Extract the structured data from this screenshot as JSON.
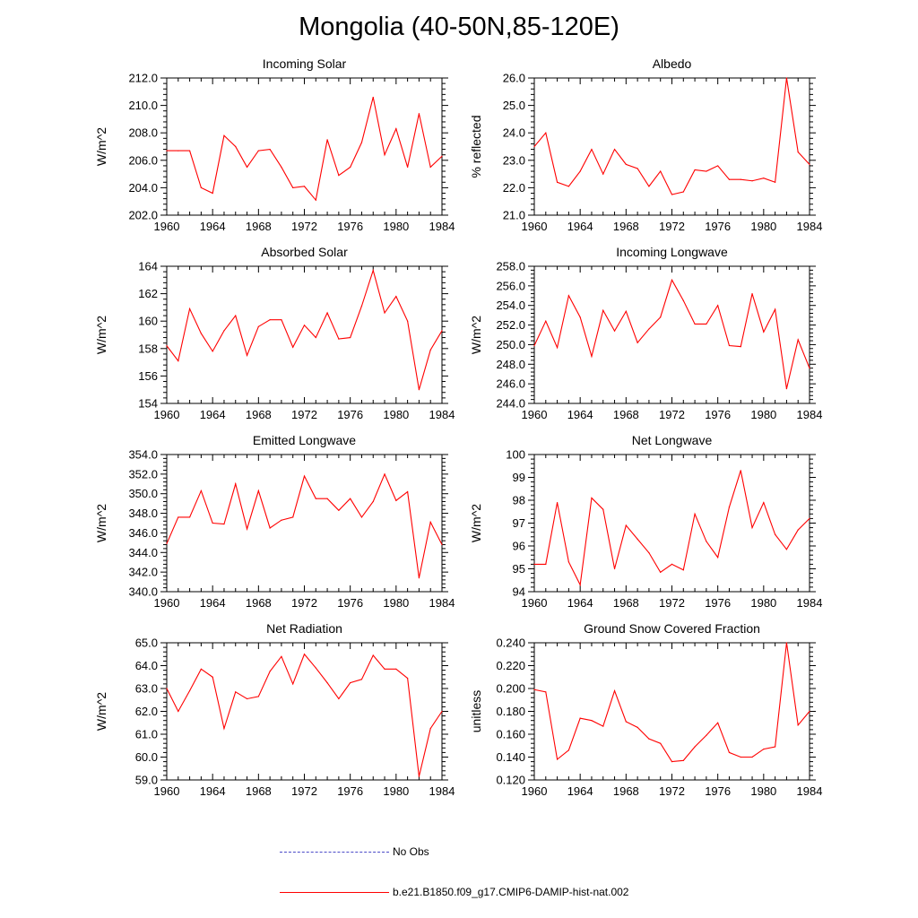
{
  "title": "Mongolia (40-50N,85-120E)",
  "legend": [
    {
      "label": "No Obs",
      "style": "dash",
      "color": "#4a4ac8"
    },
    {
      "label": "b.e21.B1850.f09_g17.CMIP6-DAMIP-hist-nat.002",
      "style": "solid",
      "color": "#ff0000"
    }
  ],
  "chart_data": [
    {
      "type": "line",
      "title": "Incoming Solar",
      "ylabel": "W/m^2",
      "xlim": [
        1960,
        1984
      ],
      "xticks": [
        "1960",
        "1964",
        "1968",
        "1972",
        "1976",
        "1980",
        "1984"
      ],
      "ylim": [
        202,
        212
      ],
      "yticks": [
        "202.0",
        "204.0",
        "206.0",
        "208.0",
        "210.0",
        "212.0"
      ],
      "color": "#ff0000",
      "x": [
        1960,
        1961,
        1962,
        1963,
        1964,
        1965,
        1966,
        1967,
        1968,
        1969,
        1970,
        1971,
        1972,
        1973,
        1974,
        1975,
        1976,
        1977,
        1978,
        1979,
        1980,
        1981,
        1982,
        1983,
        1984
      ],
      "values": [
        206.7,
        206.7,
        206.7,
        204.0,
        203.6,
        207.8,
        207.0,
        205.5,
        206.7,
        206.8,
        205.5,
        204.0,
        204.1,
        203.1,
        207.5,
        204.9,
        205.5,
        207.3,
        210.6,
        206.4,
        208.3,
        205.5,
        209.4,
        205.5,
        206.3
      ]
    },
    {
      "type": "line",
      "title": "Albedo",
      "ylabel": "% reflected",
      "xlim": [
        1960,
        1984
      ],
      "xticks": [
        "1960",
        "1964",
        "1968",
        "1972",
        "1976",
        "1980",
        "1984"
      ],
      "ylim": [
        21,
        26
      ],
      "yticks": [
        "21.0",
        "22.0",
        "23.0",
        "24.0",
        "25.0",
        "26.0"
      ],
      "color": "#ff0000",
      "x": [
        1960,
        1961,
        1962,
        1963,
        1964,
        1965,
        1966,
        1967,
        1968,
        1969,
        1970,
        1971,
        1972,
        1973,
        1974,
        1975,
        1976,
        1977,
        1978,
        1979,
        1980,
        1981,
        1982,
        1983,
        1984
      ],
      "values": [
        23.5,
        24.0,
        22.2,
        22.05,
        22.6,
        23.4,
        22.5,
        23.4,
        22.85,
        22.7,
        22.05,
        22.6,
        21.75,
        21.85,
        22.65,
        22.6,
        22.8,
        22.3,
        22.3,
        22.25,
        22.35,
        22.2,
        26.0,
        23.3,
        22.85
      ]
    },
    {
      "type": "line",
      "title": "Absorbed Solar",
      "ylabel": "W/m^2",
      "xlim": [
        1960,
        1984
      ],
      "xticks": [
        "1960",
        "1964",
        "1968",
        "1972",
        "1976",
        "1980",
        "1984"
      ],
      "ylim": [
        154,
        164
      ],
      "yticks": [
        "154",
        "156",
        "158",
        "160",
        "162",
        "164"
      ],
      "color": "#ff0000",
      "x": [
        1960,
        1961,
        1962,
        1963,
        1964,
        1965,
        1966,
        1967,
        1968,
        1969,
        1970,
        1971,
        1972,
        1973,
        1974,
        1975,
        1976,
        1977,
        1978,
        1979,
        1980,
        1981,
        1982,
        1983,
        1984
      ],
      "values": [
        158.2,
        157.1,
        160.9,
        159.1,
        157.8,
        159.3,
        160.4,
        157.5,
        159.6,
        160.1,
        160.1,
        158.1,
        159.7,
        158.8,
        160.6,
        158.7,
        158.8,
        161.1,
        163.7,
        160.6,
        161.8,
        160.0,
        155.0,
        157.9,
        159.3
      ]
    },
    {
      "type": "line",
      "title": "Incoming Longwave",
      "ylabel": "W/m^2",
      "xlim": [
        1960,
        1984
      ],
      "xticks": [
        "1960",
        "1964",
        "1968",
        "1972",
        "1976",
        "1980",
        "1984"
      ],
      "ylim": [
        244,
        258
      ],
      "yticks": [
        "244.0",
        "246.0",
        "248.0",
        "250.0",
        "252.0",
        "254.0",
        "256.0",
        "258.0"
      ],
      "color": "#ff0000",
      "x": [
        1960,
        1961,
        1962,
        1963,
        1964,
        1965,
        1966,
        1967,
        1968,
        1969,
        1970,
        1971,
        1972,
        1973,
        1974,
        1975,
        1976,
        1977,
        1978,
        1979,
        1980,
        1981,
        1982,
        1983,
        1984
      ],
      "values": [
        249.9,
        252.4,
        249.7,
        255.0,
        252.8,
        248.8,
        253.5,
        251.4,
        253.4,
        250.2,
        251.6,
        252.8,
        256.6,
        254.5,
        252.1,
        252.1,
        254.0,
        249.9,
        249.8,
        255.2,
        251.3,
        253.6,
        245.5,
        250.5,
        247.6
      ]
    },
    {
      "type": "line",
      "title": "Emitted Longwave",
      "ylabel": "W/m^2",
      "xlim": [
        1960,
        1984
      ],
      "xticks": [
        "1960",
        "1964",
        "1968",
        "1972",
        "1976",
        "1980",
        "1984"
      ],
      "ylim": [
        340,
        354
      ],
      "yticks": [
        "340.0",
        "342.0",
        "344.0",
        "346.0",
        "348.0",
        "350.0",
        "352.0",
        "354.0"
      ],
      "color": "#ff0000",
      "x": [
        1960,
        1961,
        1962,
        1963,
        1964,
        1965,
        1966,
        1967,
        1968,
        1969,
        1970,
        1971,
        1972,
        1973,
        1974,
        1975,
        1976,
        1977,
        1978,
        1979,
        1980,
        1981,
        1982,
        1983,
        1984
      ],
      "values": [
        344.9,
        347.6,
        347.6,
        350.3,
        347.0,
        346.9,
        351.0,
        346.4,
        350.3,
        346.5,
        347.3,
        347.6,
        351.8,
        349.5,
        349.5,
        348.3,
        349.5,
        347.6,
        349.2,
        352.0,
        349.3,
        350.2,
        341.4,
        347.1,
        344.8
      ]
    },
    {
      "type": "line",
      "title": "Net Longwave",
      "ylabel": "W/m^2",
      "xlim": [
        1960,
        1984
      ],
      "xticks": [
        "1960",
        "1964",
        "1968",
        "1972",
        "1976",
        "1980",
        "1984"
      ],
      "ylim": [
        94,
        100
      ],
      "yticks": [
        "94",
        "95",
        "96",
        "97",
        "98",
        "99",
        "100"
      ],
      "color": "#ff0000",
      "x": [
        1960,
        1961,
        1962,
        1963,
        1964,
        1965,
        1966,
        1967,
        1968,
        1969,
        1970,
        1971,
        1972,
        1973,
        1974,
        1975,
        1976,
        1977,
        1978,
        1979,
        1980,
        1981,
        1982,
        1983,
        1984
      ],
      "values": [
        95.2,
        95.2,
        97.9,
        95.3,
        94.3,
        98.1,
        97.6,
        95.0,
        96.9,
        96.3,
        95.7,
        94.85,
        95.2,
        94.95,
        97.4,
        96.2,
        95.5,
        97.7,
        99.3,
        96.8,
        97.9,
        96.5,
        95.85,
        96.7,
        97.2
      ]
    },
    {
      "type": "line",
      "title": "Net Radiation",
      "ylabel": "W/m^2",
      "xlim": [
        1960,
        1984
      ],
      "xticks": [
        "1960",
        "1964",
        "1968",
        "1972",
        "1976",
        "1980",
        "1984"
      ],
      "ylim": [
        59,
        65
      ],
      "yticks": [
        "59.0",
        "60.0",
        "61.0",
        "62.0",
        "63.0",
        "64.0",
        "65.0"
      ],
      "color": "#ff0000",
      "x": [
        1960,
        1961,
        1962,
        1963,
        1964,
        1965,
        1966,
        1967,
        1968,
        1969,
        1970,
        1971,
        1972,
        1973,
        1974,
        1975,
        1976,
        1977,
        1978,
        1979,
        1980,
        1981,
        1982,
        1983,
        1984
      ],
      "values": [
        63.0,
        62.0,
        62.9,
        63.85,
        63.5,
        61.25,
        62.85,
        62.55,
        62.65,
        63.75,
        64.4,
        63.2,
        64.5,
        63.9,
        63.25,
        62.55,
        63.25,
        63.4,
        64.45,
        63.85,
        63.85,
        63.45,
        59.15,
        61.25,
        62.0
      ]
    },
    {
      "type": "line",
      "title": "Ground Snow Covered Fraction",
      "ylabel": "unitless",
      "xlim": [
        1960,
        1984
      ],
      "xticks": [
        "1960",
        "1964",
        "1968",
        "1972",
        "1976",
        "1980",
        "1984"
      ],
      "ylim": [
        0.12,
        0.24
      ],
      "yticks": [
        "0.120",
        "0.140",
        "0.160",
        "0.180",
        "0.200",
        "0.220",
        "0.240"
      ],
      "color": "#ff0000",
      "x": [
        1960,
        1961,
        1962,
        1963,
        1964,
        1965,
        1966,
        1967,
        1968,
        1969,
        1970,
        1971,
        1972,
        1973,
        1974,
        1975,
        1976,
        1977,
        1978,
        1979,
        1980,
        1981,
        1982,
        1983,
        1984
      ],
      "values": [
        0.199,
        0.197,
        0.138,
        0.146,
        0.174,
        0.172,
        0.167,
        0.198,
        0.171,
        0.166,
        0.156,
        0.152,
        0.136,
        0.137,
        0.149,
        0.159,
        0.17,
        0.144,
        0.14,
        0.14,
        0.147,
        0.149,
        0.24,
        0.168,
        0.18
      ]
    }
  ]
}
